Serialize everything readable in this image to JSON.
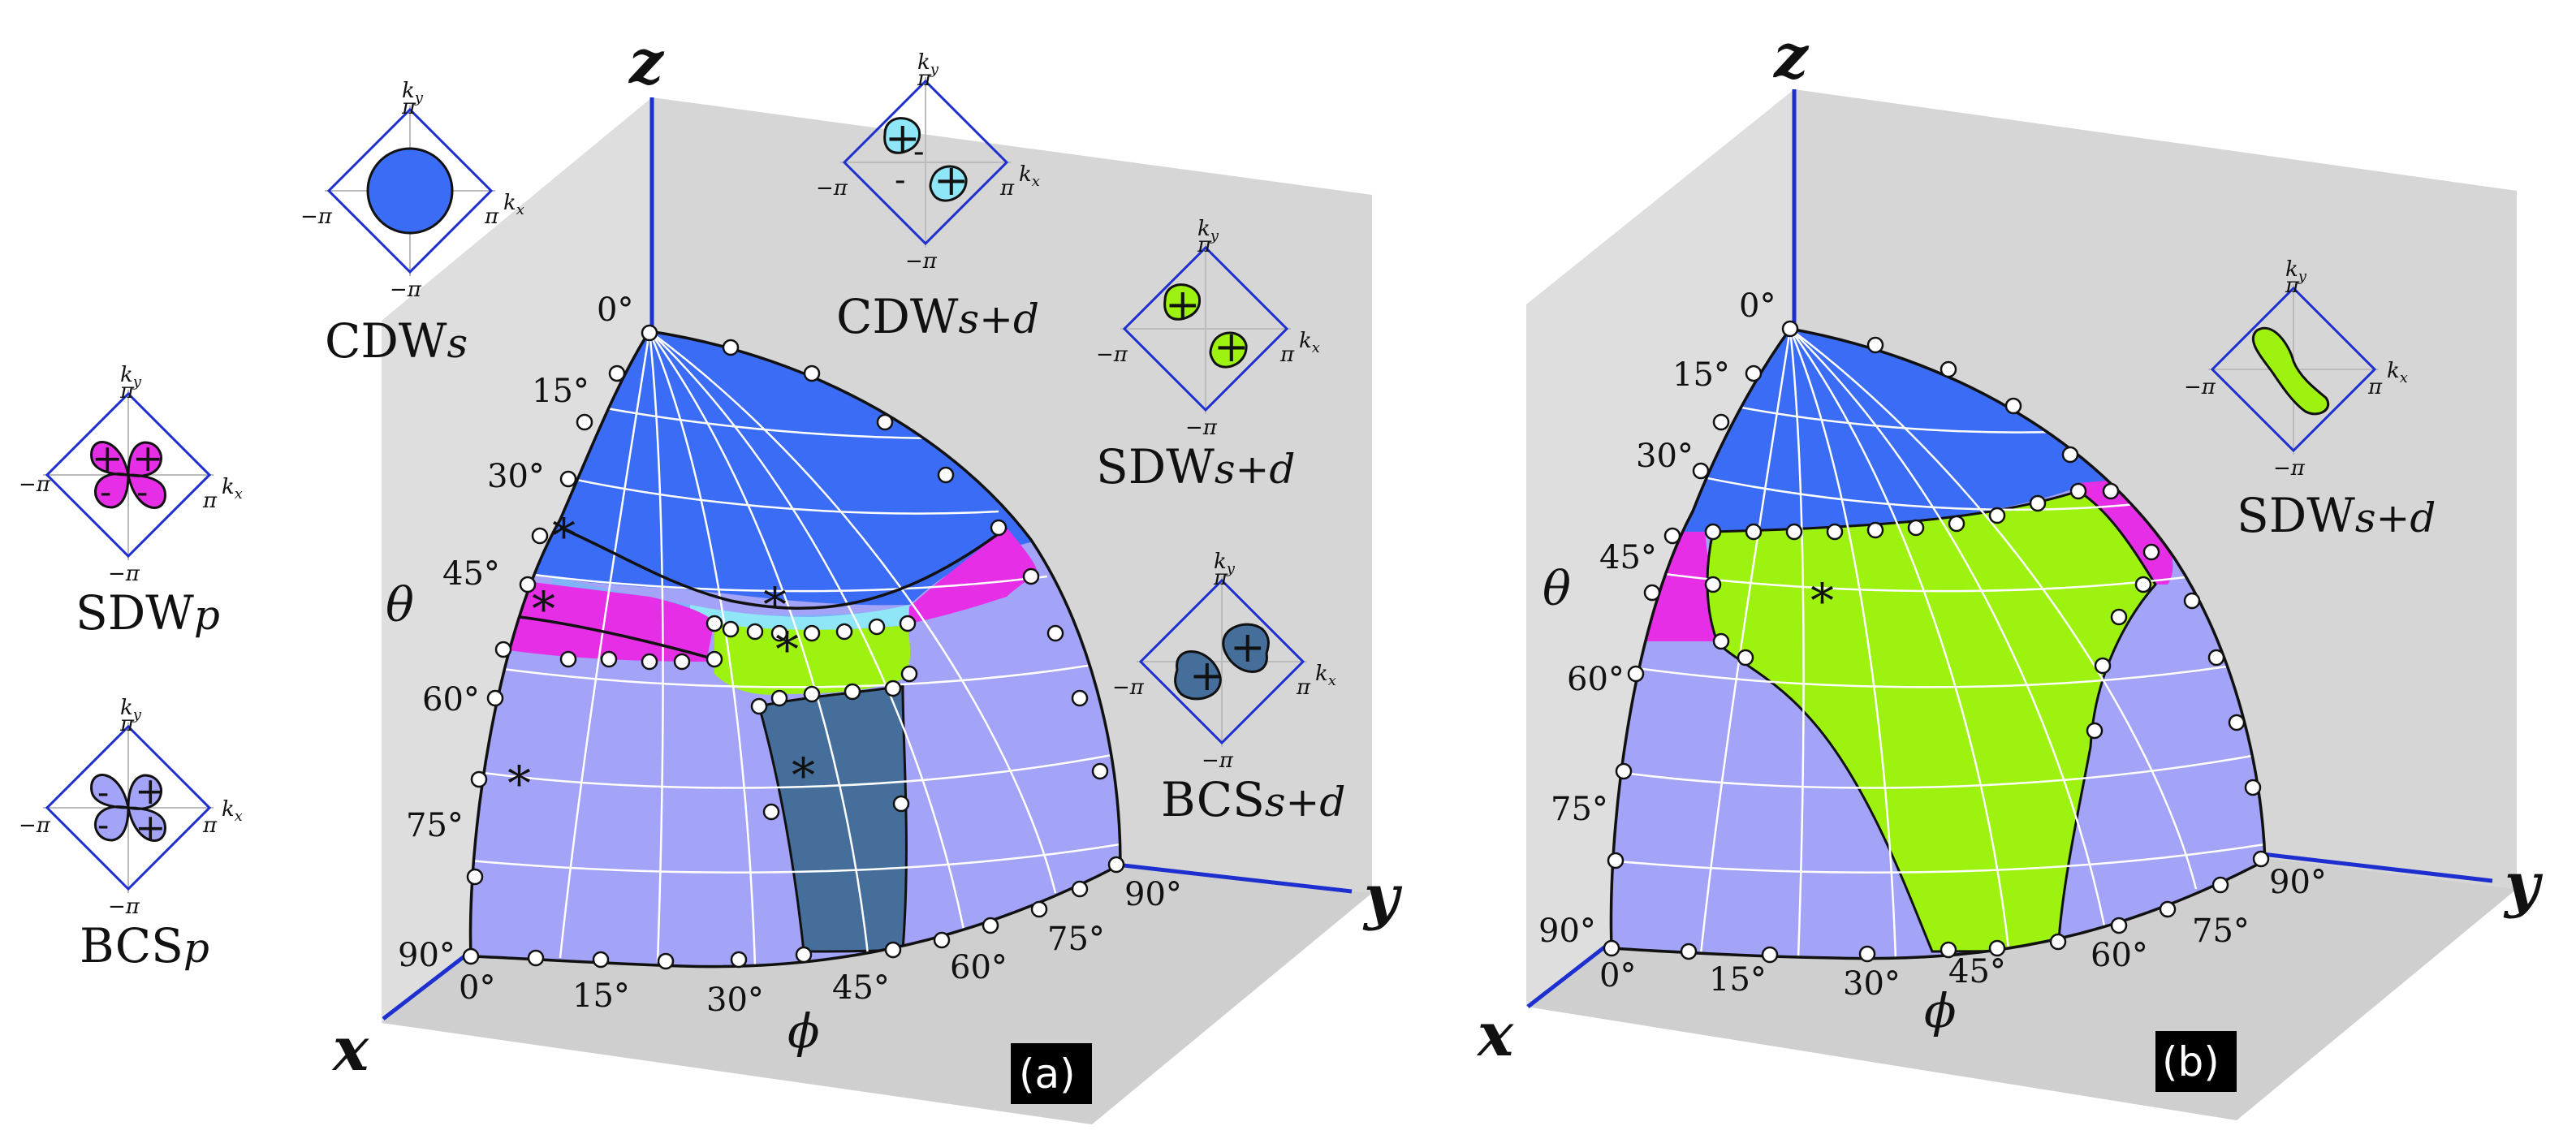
{
  "axes": {
    "x": "x",
    "y": "y",
    "z": "z"
  },
  "theta_label": "θ",
  "phi_label": "ϕ",
  "theta_ticks": [
    "0°",
    "15°",
    "30°",
    "45°",
    "60°",
    "75°",
    "90°"
  ],
  "phi_ticks": [
    "0°",
    "15°",
    "30°",
    "45°",
    "60°",
    "75°",
    "90°"
  ],
  "panels": [
    {
      "tag": "(a)"
    },
    {
      "tag": "(b)"
    }
  ],
  "inset_text": {
    "ky": "k",
    "ky_sub": "y",
    "kx": "k",
    "kx_sub": "x",
    "pi": "π",
    "minus_pi": "−π"
  },
  "phases": [
    {
      "base": "CDW",
      "sub": "s",
      "color": "#3b6cf5"
    },
    {
      "base": "CDW",
      "sub": "s+d",
      "color": "#8ee6f6"
    },
    {
      "base": "SDW",
      "sub": "s+d",
      "color": "#9ef20f"
    },
    {
      "base": "BCS",
      "sub": "s+d",
      "color": "#456e9b"
    },
    {
      "base": "SDW",
      "sub": "p",
      "color": "#e62ee6"
    },
    {
      "base": "BCS",
      "sub": "p",
      "color": "#a3a3f7"
    }
  ],
  "marker": "*",
  "signs": {
    "plus": "+",
    "minus": "-"
  }
}
